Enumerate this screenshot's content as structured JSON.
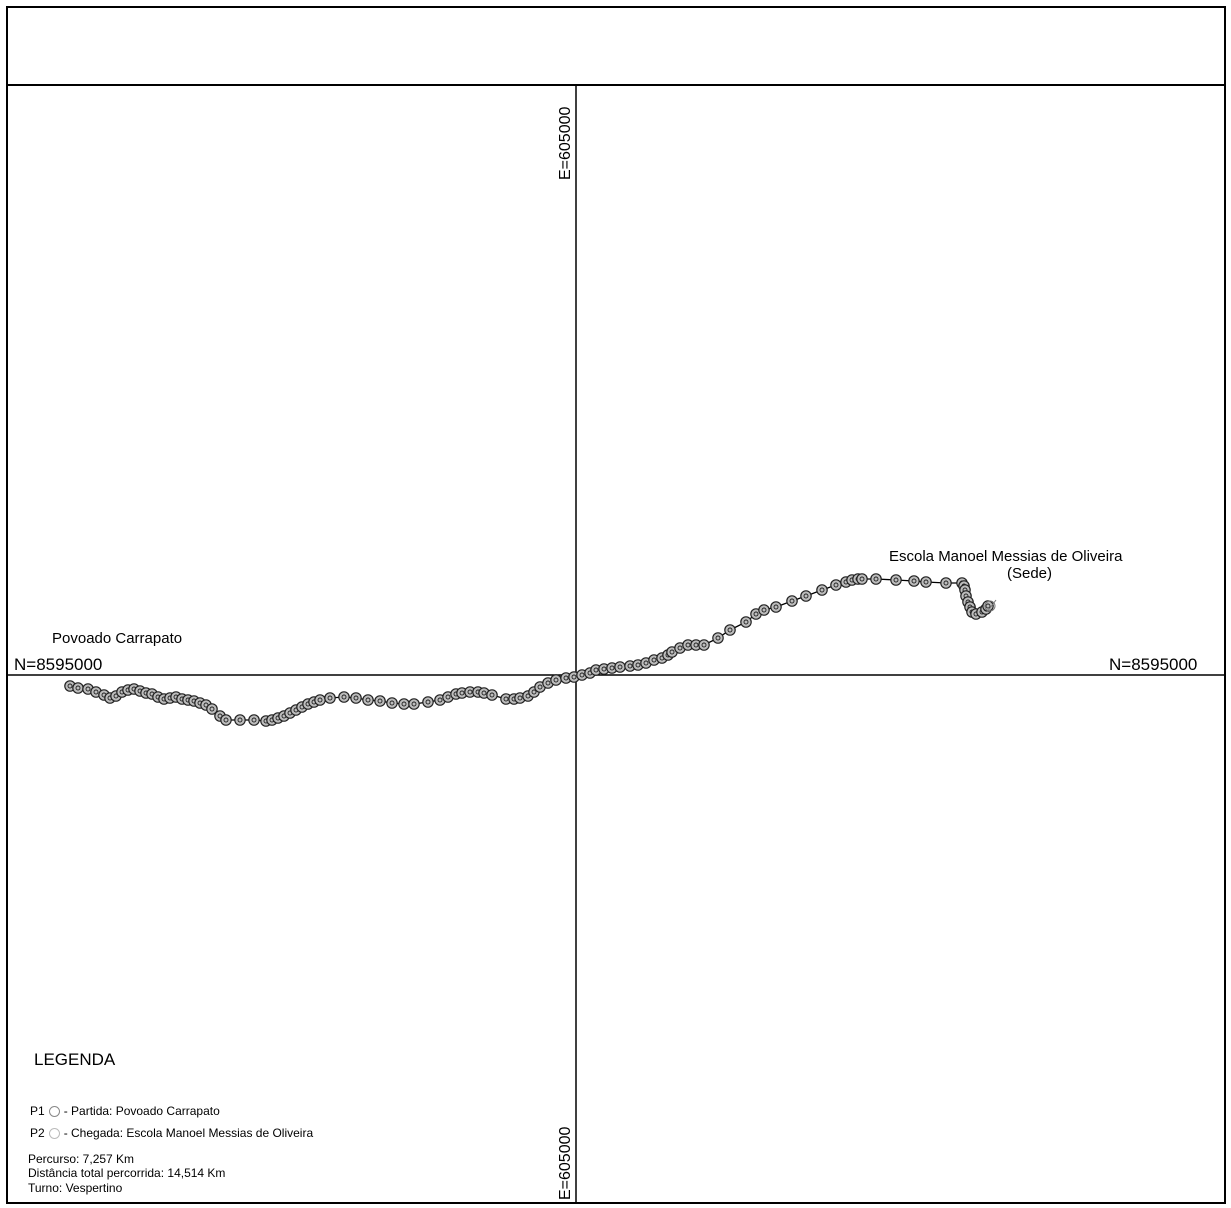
{
  "grid": {
    "n_label_left": "N=8595000",
    "n_label_right": "N=8595000",
    "e_label_top": "E=605000",
    "e_label_bottom": "E=605000"
  },
  "places": {
    "start_label": "Povoado Carrapato",
    "end_label_line1": "Escola Manoel Messias de Oliveira",
    "end_label_line2": "(Sede)"
  },
  "legend": {
    "title": "LEGENDA",
    "p1_code": "P1",
    "p1_text": "- Partida: Povoado Carrapato",
    "p2_code": "P2",
    "p2_text": "- Chegada: Escola Manoel Messias de Oliveira",
    "route": "Percurso: 7,257 Km",
    "total_distance": "Distância total percorrida: 14,514 Km",
    "shift": "Turno: Vespertino"
  },
  "colors": {
    "line": "#000000",
    "marker_stroke": "#222222",
    "marker_fill": "#bdbdbd"
  }
}
